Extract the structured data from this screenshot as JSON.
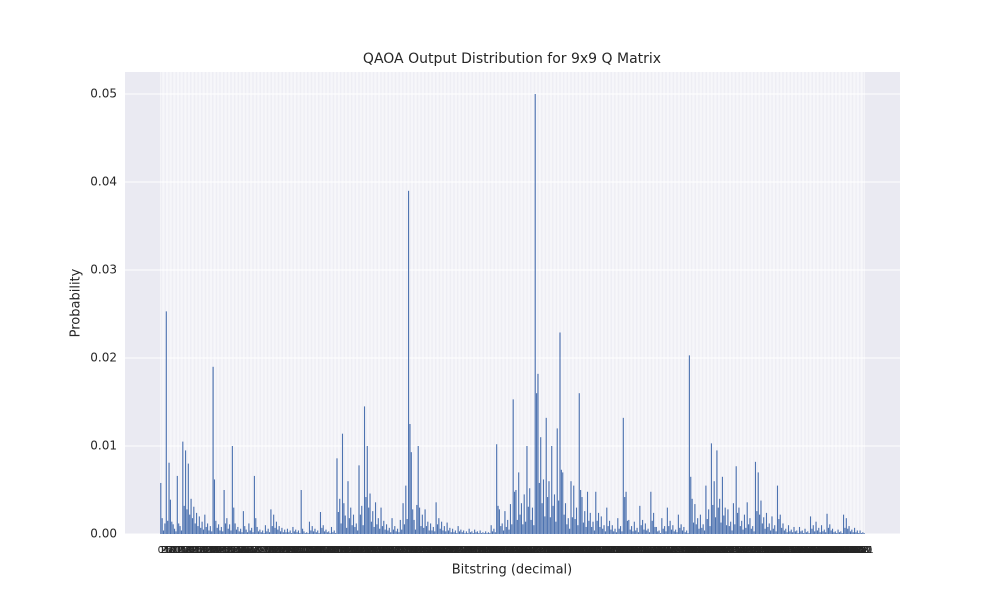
{
  "chart_data": {
    "type": "bar",
    "title": "QAOA Output Distribution for 9x9 Q Matrix",
    "x_label": "Bitstring (decimal)",
    "y_label": "Probability",
    "color": "#4c72b0",
    "grid": true,
    "xlim": [
      -26,
      537
    ],
    "ylim": [
      0,
      0.0525
    ],
    "yticks": [
      {
        "value": 0,
        "label": "0.00"
      },
      {
        "value": 0.01,
        "label": "0.01"
      },
      {
        "value": 0.02,
        "label": "0.02"
      },
      {
        "value": 0.03,
        "label": "0.03"
      },
      {
        "value": 0.04,
        "label": "0.04"
      },
      {
        "value": 0.05,
        "label": "0.05"
      }
    ],
    "categories": [
      0,
      1,
      2,
      3,
      4,
      5,
      6,
      7,
      8,
      9,
      10,
      11,
      12,
      13,
      14,
      15,
      16,
      17,
      18,
      19,
      20,
      21,
      22,
      23,
      24,
      25,
      26,
      27,
      28,
      29,
      30,
      31,
      32,
      33,
      34,
      35,
      36,
      37,
      38,
      39,
      40,
      41,
      42,
      43,
      44,
      45,
      46,
      47,
      48,
      49,
      50,
      51,
      52,
      53,
      54,
      55,
      56,
      57,
      58,
      59,
      60,
      61,
      62,
      63,
      64,
      65,
      66,
      67,
      68,
      69,
      70,
      71,
      72,
      73,
      74,
      75,
      76,
      77,
      78,
      79,
      80,
      81,
      82,
      83,
      84,
      85,
      86,
      87,
      88,
      89,
      90,
      91,
      92,
      93,
      94,
      95,
      96,
      97,
      98,
      99,
      100,
      101,
      102,
      103,
      104,
      105,
      106,
      107,
      108,
      109,
      110,
      111,
      112,
      113,
      114,
      115,
      116,
      117,
      118,
      119,
      120,
      121,
      122,
      123,
      124,
      125,
      126,
      127,
      128,
      129,
      130,
      131,
      132,
      133,
      134,
      135,
      136,
      137,
      138,
      139,
      140,
      141,
      142,
      143,
      144,
      145,
      146,
      147,
      148,
      149,
      150,
      151,
      152,
      153,
      154,
      155,
      156,
      157,
      158,
      159,
      160,
      161,
      162,
      163,
      164,
      165,
      166,
      167,
      168,
      169,
      170,
      171,
      172,
      173,
      174,
      175,
      176,
      177,
      178,
      179,
      180,
      181,
      182,
      183,
      184,
      185,
      186,
      187,
      188,
      189,
      190,
      191,
      192,
      193,
      194,
      195,
      196,
      197,
      198,
      199,
      200,
      201,
      202,
      203,
      204,
      205,
      206,
      207,
      208,
      209,
      210,
      211,
      212,
      213,
      214,
      215,
      216,
      217,
      218,
      219,
      220,
      221,
      222,
      223,
      224,
      225,
      226,
      227,
      228,
      229,
      230,
      231,
      232,
      233,
      234,
      235,
      236,
      237,
      238,
      239,
      240,
      241,
      242,
      243,
      244,
      245,
      246,
      247,
      248,
      249,
      250,
      251,
      252,
      253,
      254,
      255,
      256,
      257,
      258,
      259,
      260,
      261,
      262,
      263,
      264,
      265,
      266,
      267,
      268,
      269,
      270,
      271,
      272,
      273,
      274,
      275,
      276,
      277,
      278,
      279,
      280,
      281,
      282,
      283,
      284,
      285,
      286,
      287,
      288,
      289,
      290,
      291,
      292,
      293,
      294,
      295,
      296,
      297,
      298,
      299,
      300,
      301,
      302,
      303,
      304,
      305,
      306,
      307,
      308,
      309,
      310,
      311,
      312,
      313,
      314,
      315,
      316,
      317,
      318,
      319,
      320,
      321,
      322,
      323,
      324,
      325,
      326,
      327,
      328,
      329,
      330,
      331,
      332,
      333,
      334,
      335,
      336,
      337,
      338,
      339,
      340,
      341,
      342,
      343,
      344,
      345,
      346,
      347,
      348,
      349,
      350,
      351,
      352,
      353,
      354,
      355,
      356,
      357,
      358,
      359,
      360,
      361,
      362,
      363,
      364,
      365,
      366,
      367,
      368,
      369,
      370,
      371,
      372,
      373,
      374,
      375,
      376,
      377,
      378,
      379,
      380,
      381,
      382,
      383,
      384,
      385,
      386,
      387,
      388,
      389,
      390,
      391,
      392,
      393,
      394,
      395,
      396,
      397,
      398,
      399,
      400,
      401,
      402,
      403,
      404,
      405,
      406,
      407,
      408,
      409,
      410,
      411,
      412,
      413,
      414,
      415,
      416,
      417,
      418,
      419,
      420,
      421,
      422,
      423,
      424,
      425,
      426,
      427,
      428,
      429,
      430,
      431,
      432,
      433,
      434,
      435,
      436,
      437,
      438,
      439,
      440,
      441,
      442,
      443,
      444,
      445,
      446,
      447,
      448,
      449,
      450,
      451,
      452,
      453,
      454,
      455,
      456,
      457,
      458,
      459,
      460,
      461,
      462,
      463,
      464,
      465,
      466,
      467,
      468,
      469,
      470,
      471,
      472,
      473,
      474,
      475,
      476,
      477,
      478,
      479,
      480,
      481,
      482,
      483,
      484,
      485,
      486,
      487,
      488,
      489,
      490,
      491,
      492,
      493,
      494,
      495,
      496,
      497,
      498,
      499,
      500,
      501,
      502,
      503,
      504,
      505,
      506,
      507,
      508,
      509,
      510,
      511
    ],
    "values": [
      0.0058,
      0.0018,
      0.0004,
      0.0012,
      0.0253,
      0.0015,
      0.0081,
      0.0039,
      0.0014,
      0.0011,
      0.0006,
      0.0003,
      0.0066,
      0.0012,
      0.0009,
      0.0004,
      0.0105,
      0.0032,
      0.0095,
      0.0028,
      0.008,
      0.0022,
      0.004,
      0.0018,
      0.0031,
      0.0012,
      0.0024,
      0.0009,
      0.002,
      0.0007,
      0.0014,
      0.0005,
      0.0022,
      0.0008,
      0.0012,
      0.0004,
      0.0009,
      0.0003,
      0.019,
      0.0062,
      0.0015,
      0.0007,
      0.0011,
      0.0004,
      0.0008,
      0.0003,
      0.005,
      0.0012,
      0.0018,
      0.0006,
      0.0011,
      0.0004,
      0.01,
      0.003,
      0.0012,
      0.0005,
      0.0008,
      0.0003,
      0.0006,
      0.0002,
      0.0026,
      0.0009,
      0.0005,
      0.0002,
      0.0012,
      0.0004,
      0.0007,
      0.0002,
      0.0066,
      0.0018,
      0.0008,
      0.0003,
      0.0005,
      0.0002,
      0.0004,
      0.0001,
      0.001,
      0.0003,
      0.0006,
      0.0002,
      0.0028,
      0.0009,
      0.0022,
      0.0007,
      0.0014,
      0.0005,
      0.0009,
      0.0003,
      0.0007,
      0.0002,
      0.0005,
      0.0002,
      0.0006,
      0.0002,
      0.0004,
      0.0001,
      0.0008,
      0.0003,
      0.0005,
      0.0002,
      0.0004,
      0.0001,
      0.005,
      0.0006,
      0.0003,
      0.0001,
      0.0002,
      0.0001,
      0.0014,
      0.0004,
      0.0009,
      0.0003,
      0.0006,
      0.0002,
      0.0004,
      0.0001,
      0.0025,
      0.0007,
      0.001,
      0.0003,
      0.0005,
      0.0002,
      0.0003,
      0.0001,
      0.0008,
      0.0002,
      0.0004,
      0.0001,
      0.0086,
      0.0025,
      0.004,
      0.0012,
      0.0114,
      0.0035,
      0.0021,
      0.0007,
      0.006,
      0.0018,
      0.003,
      0.001,
      0.0022,
      0.0008,
      0.0012,
      0.0004,
      0.0078,
      0.0022,
      0.0032,
      0.001,
      0.0145,
      0.0042,
      0.01,
      0.003,
      0.0046,
      0.0014,
      0.0026,
      0.0008,
      0.0036,
      0.0011,
      0.0018,
      0.0006,
      0.003,
      0.0009,
      0.0015,
      0.0005,
      0.0011,
      0.0004,
      0.0007,
      0.0002,
      0.0018,
      0.0005,
      0.0009,
      0.0003,
      0.0006,
      0.0002,
      0.0016,
      0.0005,
      0.0035,
      0.0011,
      0.0055,
      0.0017,
      0.039,
      0.0125,
      0.0093,
      0.0028,
      0.0016,
      0.0005,
      0.0033,
      0.01,
      0.003,
      0.0009,
      0.0022,
      0.0007,
      0.0028,
      0.0009,
      0.0014,
      0.0004,
      0.0012,
      0.0004,
      0.0008,
      0.0003,
      0.0036,
      0.0011,
      0.0018,
      0.0006,
      0.0014,
      0.0004,
      0.0009,
      0.0003,
      0.0013,
      0.0004,
      0.0007,
      0.0002,
      0.0006,
      0.0002,
      0.0004,
      0.0001,
      0.0009,
      0.0003,
      0.0005,
      0.0002,
      0.0004,
      0.0001,
      0.0003,
      0.0001,
      0.0006,
      0.0002,
      0.0003,
      0.0001,
      0.0005,
      0.0002,
      0.0003,
      0.0001,
      0.0004,
      0.0001,
      0.0002,
      0.0001,
      0.0003,
      0.0001,
      0.0002,
      0.0001,
      0.001,
      0.0003,
      0.0006,
      0.0002,
      0.0102,
      0.0032,
      0.0028,
      0.0009,
      0.0012,
      0.0004,
      0.0026,
      0.0008,
      0.0016,
      0.0005,
      0.0034,
      0.0011,
      0.0153,
      0.0048,
      0.005,
      0.0016,
      0.007,
      0.0022,
      0.0035,
      0.0011,
      0.0045,
      0.0014,
      0.01,
      0.0031,
      0.0052,
      0.0016,
      0.003,
      0.001,
      0.05,
      0.016,
      0.0182,
      0.0058,
      0.011,
      0.0035,
      0.0062,
      0.002,
      0.0132,
      0.0042,
      0.006,
      0.0019,
      0.01,
      0.0032,
      0.0045,
      0.0014,
      0.012,
      0.0038,
      0.0229,
      0.0073,
      0.007,
      0.0022,
      0.0035,
      0.0011,
      0.0018,
      0.0006,
      0.006,
      0.0019,
      0.0055,
      0.0017,
      0.003,
      0.001,
      0.016,
      0.005,
      0.0042,
      0.0013,
      0.0026,
      0.0008,
      0.0048,
      0.0015,
      0.0024,
      0.0008,
      0.0014,
      0.0004,
      0.0048,
      0.0015,
      0.0024,
      0.0008,
      0.002,
      0.0006,
      0.001,
      0.0003,
      0.003,
      0.0009,
      0.0015,
      0.0005,
      0.001,
      0.0003,
      0.0006,
      0.0002,
      0.0018,
      0.0006,
      0.0009,
      0.0003,
      0.0132,
      0.0042,
      0.0048,
      0.0015,
      0.0016,
      0.0005,
      0.0009,
      0.0003,
      0.0014,
      0.0004,
      0.0007,
      0.0002,
      0.0032,
      0.001,
      0.0016,
      0.0005,
      0.0012,
      0.0004,
      0.0006,
      0.0002,
      0.0048,
      0.0015,
      0.0024,
      0.0008,
      0.0008,
      0.0003,
      0.0004,
      0.0001,
      0.0018,
      0.0006,
      0.0009,
      0.0003,
      0.003,
      0.0009,
      0.0015,
      0.0005,
      0.001,
      0.0003,
      0.0005,
      0.0002,
      0.0022,
      0.0007,
      0.0011,
      0.0004,
      0.0008,
      0.0002,
      0.0004,
      0.0001,
      0.0203,
      0.0065,
      0.004,
      0.0013,
      0.0034,
      0.0011,
      0.0018,
      0.0006,
      0.0022,
      0.0007,
      0.0011,
      0.0004,
      0.0055,
      0.0017,
      0.0028,
      0.0009,
      0.0103,
      0.0033,
      0.006,
      0.0019,
      0.0095,
      0.003,
      0.004,
      0.0013,
      0.0065,
      0.0021,
      0.003,
      0.001,
      0.0028,
      0.0009,
      0.0014,
      0.0004,
      0.0035,
      0.0011,
      0.0077,
      0.0024,
      0.003,
      0.0009,
      0.0015,
      0.0005,
      0.0022,
      0.0007,
      0.0036,
      0.0011,
      0.0018,
      0.0006,
      0.0009,
      0.0003,
      0.0082,
      0.0026,
      0.007,
      0.0022,
      0.0038,
      0.0012,
      0.0019,
      0.0006,
      0.0024,
      0.0008,
      0.0012,
      0.0004,
      0.002,
      0.0006,
      0.001,
      0.0003,
      0.0055,
      0.0017,
      0.0022,
      0.0007,
      0.0012,
      0.0004,
      0.0006,
      0.0002,
      0.001,
      0.0003,
      0.0005,
      0.0002,
      0.0008,
      0.0003,
      0.0004,
      0.0001,
      0.0008,
      0.0003,
      0.0004,
      0.0001,
      0.0006,
      0.0002,
      0.0003,
      0.0001,
      0.002,
      0.0006,
      0.001,
      0.0003,
      0.0014,
      0.0004,
      0.0007,
      0.0002,
      0.001,
      0.0003,
      0.0005,
      0.0002,
      0.0023,
      0.0007,
      0.0011,
      0.0004,
      0.0006,
      0.0002,
      0.0003,
      0.0001,
      0.0005,
      0.0002,
      0.0003,
      0.0001,
      0.0022,
      0.0007,
      0.0018,
      0.0006,
      0.0009,
      0.0003,
      0.0005,
      0.0002,
      0.0007,
      0.0002,
      0.0004,
      0.0001,
      0.0004,
      0.0001,
      0.0002,
      0.0001
    ]
  }
}
